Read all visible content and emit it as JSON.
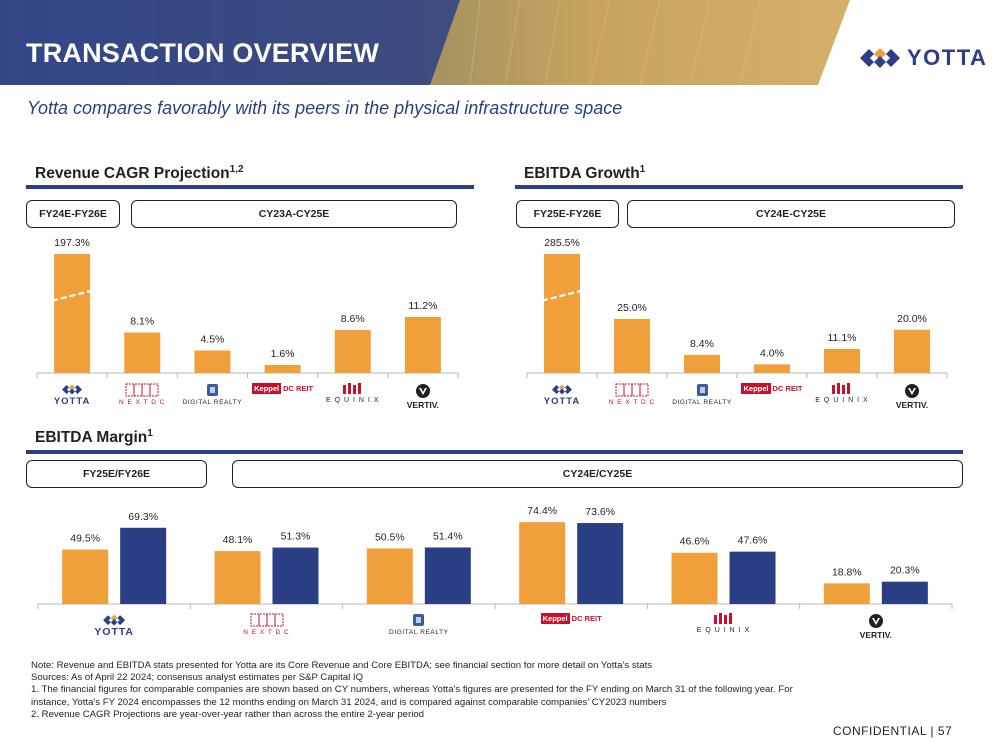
{
  "header": {
    "title": "TRANSACTION OVERVIEW",
    "brand": "YOTTA"
  },
  "subtitle": "Yotta compares favorably with its peers in the physical infrastructure space",
  "sections": {
    "revenue": {
      "title": "Revenue CAGR Projection",
      "sup": "1,2",
      "pill_left": "FY24E-FY26E",
      "pill_right": "CY23A-CY25E"
    },
    "ebitda_growth": {
      "title": "EBITDA Growth",
      "sup": "1",
      "pill_left": "FY25E-FY26E",
      "pill_right": "CY24E-CY25E"
    },
    "ebitda_margin": {
      "title": "EBITDA Margin",
      "sup": "1",
      "pill_left": "FY25E/FY26E",
      "pill_right": "CY24E/CY25E"
    }
  },
  "logos": {
    "yotta": "YOTTA",
    "nextdc": "N E X T D C",
    "digital_realty": "DIGITAL REALTY",
    "keppel": "Keppel",
    "keppel_suffix": "DC REIT",
    "equinix": "E Q U I N I X",
    "vertiv": "VERTIV."
  },
  "colors": {
    "orange": "#f0a03a",
    "navy": "#2b3f86",
    "axis": "#b7b7b7"
  },
  "chart_data": [
    {
      "type": "bar",
      "title": "Revenue CAGR Projection",
      "categories": [
        "Yotta",
        "NEXTDC",
        "Digital Realty",
        "Keppel DC REIT",
        "Equinix",
        "Vertiv"
      ],
      "values": [
        197.3,
        8.1,
        4.5,
        1.6,
        8.6,
        11.2
      ],
      "labels": [
        "197.3%",
        "8.1%",
        "4.5%",
        "1.6%",
        "8.6%",
        "11.2%"
      ],
      "axis_break": "Yotta bar truncated (broken axis)",
      "ylim": [
        0,
        16
      ]
    },
    {
      "type": "bar",
      "title": "EBITDA Growth",
      "categories": [
        "Yotta",
        "NEXTDC",
        "Digital Realty",
        "Keppel DC REIT",
        "Equinix",
        "Vertiv"
      ],
      "values": [
        285.5,
        25.0,
        8.4,
        4.0,
        11.1,
        20.0
      ],
      "labels": [
        "285.5%",
        "25.0%",
        "8.4%",
        "4.0%",
        "11.1%",
        "20.0%"
      ],
      "axis_break": "Yotta bar truncated (broken axis)",
      "ylim": [
        0,
        37
      ]
    },
    {
      "type": "bar",
      "title": "EBITDA Margin",
      "categories": [
        "Yotta",
        "NEXTDC",
        "Digital Realty",
        "Keppel DC REIT",
        "Equinix",
        "Vertiv"
      ],
      "series": [
        {
          "name": "FY25E / CY24E",
          "values": [
            49.5,
            48.1,
            50.5,
            74.4,
            46.6,
            18.8
          ],
          "labels": [
            "49.5%",
            "48.1%",
            "50.5%",
            "74.4%",
            "46.6%",
            "18.8%"
          ]
        },
        {
          "name": "FY26E / CY25E",
          "values": [
            69.3,
            51.3,
            51.4,
            73.6,
            47.6,
            20.3
          ],
          "labels": [
            "69.3%",
            "51.3%",
            "51.4%",
            "73.6%",
            "47.6%",
            "20.3%"
          ]
        }
      ],
      "ylim": [
        0,
        80
      ]
    }
  ],
  "notes": [
    "Note: Revenue and EBITDA stats presented for Yotta are its Core Revenue and Core EBITDA; see financial section for more detail on Yotta’s stats",
    "Sources: As of April 22 2024; consensus analyst estimates per S&P Capital IQ",
    "1. The financial figures for comparable companies are shown based on CY numbers, whereas Yotta's figures are presented for the FY ending on March 31 of the following year. For instance, Yotta's FY 2024 encompasses the 12 months ending on March 31 2024, and is compared against comparable companies’ CY2023 numbers",
    "2. Revenue CAGR Projections are year-over-year rather than across the entire 2-year period"
  ],
  "footer": "CONFIDENTIAL | 57"
}
